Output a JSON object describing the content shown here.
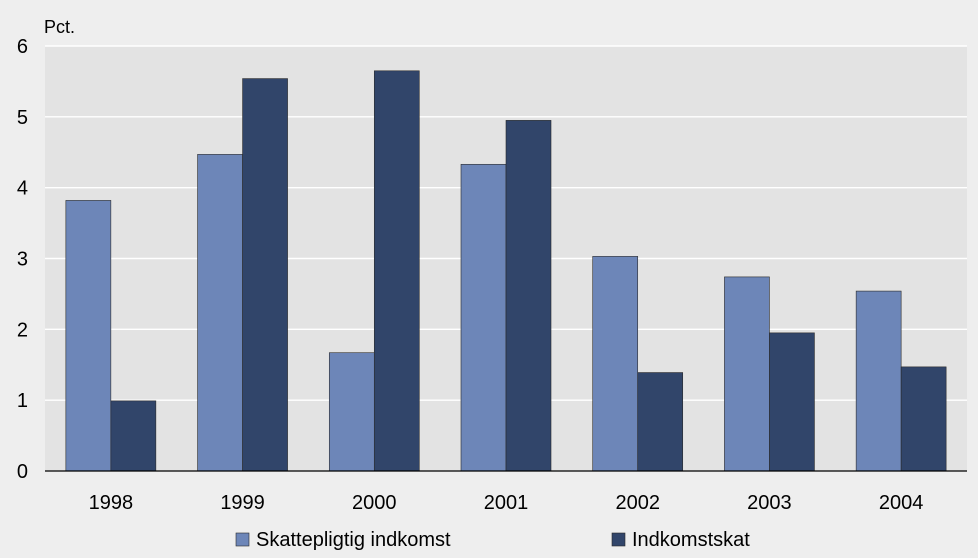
{
  "chart_data": {
    "type": "bar",
    "unit_label": "Pct.",
    "categories": [
      "1998",
      "1999",
      "2000",
      "2001",
      "2002",
      "2003",
      "2004"
    ],
    "series": [
      {
        "name": "Skattepligtig indkomst",
        "values": [
          3.82,
          4.47,
          1.67,
          4.33,
          3.03,
          2.74,
          2.54
        ],
        "color": "#6d86b8"
      },
      {
        "name": "Indkomstskat",
        "values": [
          0.99,
          5.54,
          5.65,
          4.95,
          1.39,
          1.95,
          1.47
        ],
        "color": "#31456a"
      }
    ],
    "ylim": [
      0,
      6
    ],
    "yticks": [
      0,
      1,
      2,
      3,
      4,
      5,
      6
    ],
    "grid": true,
    "legend_position": "bottom-center",
    "plot_background": "#e3e3e3",
    "frame_background": "#eeeeee",
    "gridline_color": "#ffffff"
  }
}
